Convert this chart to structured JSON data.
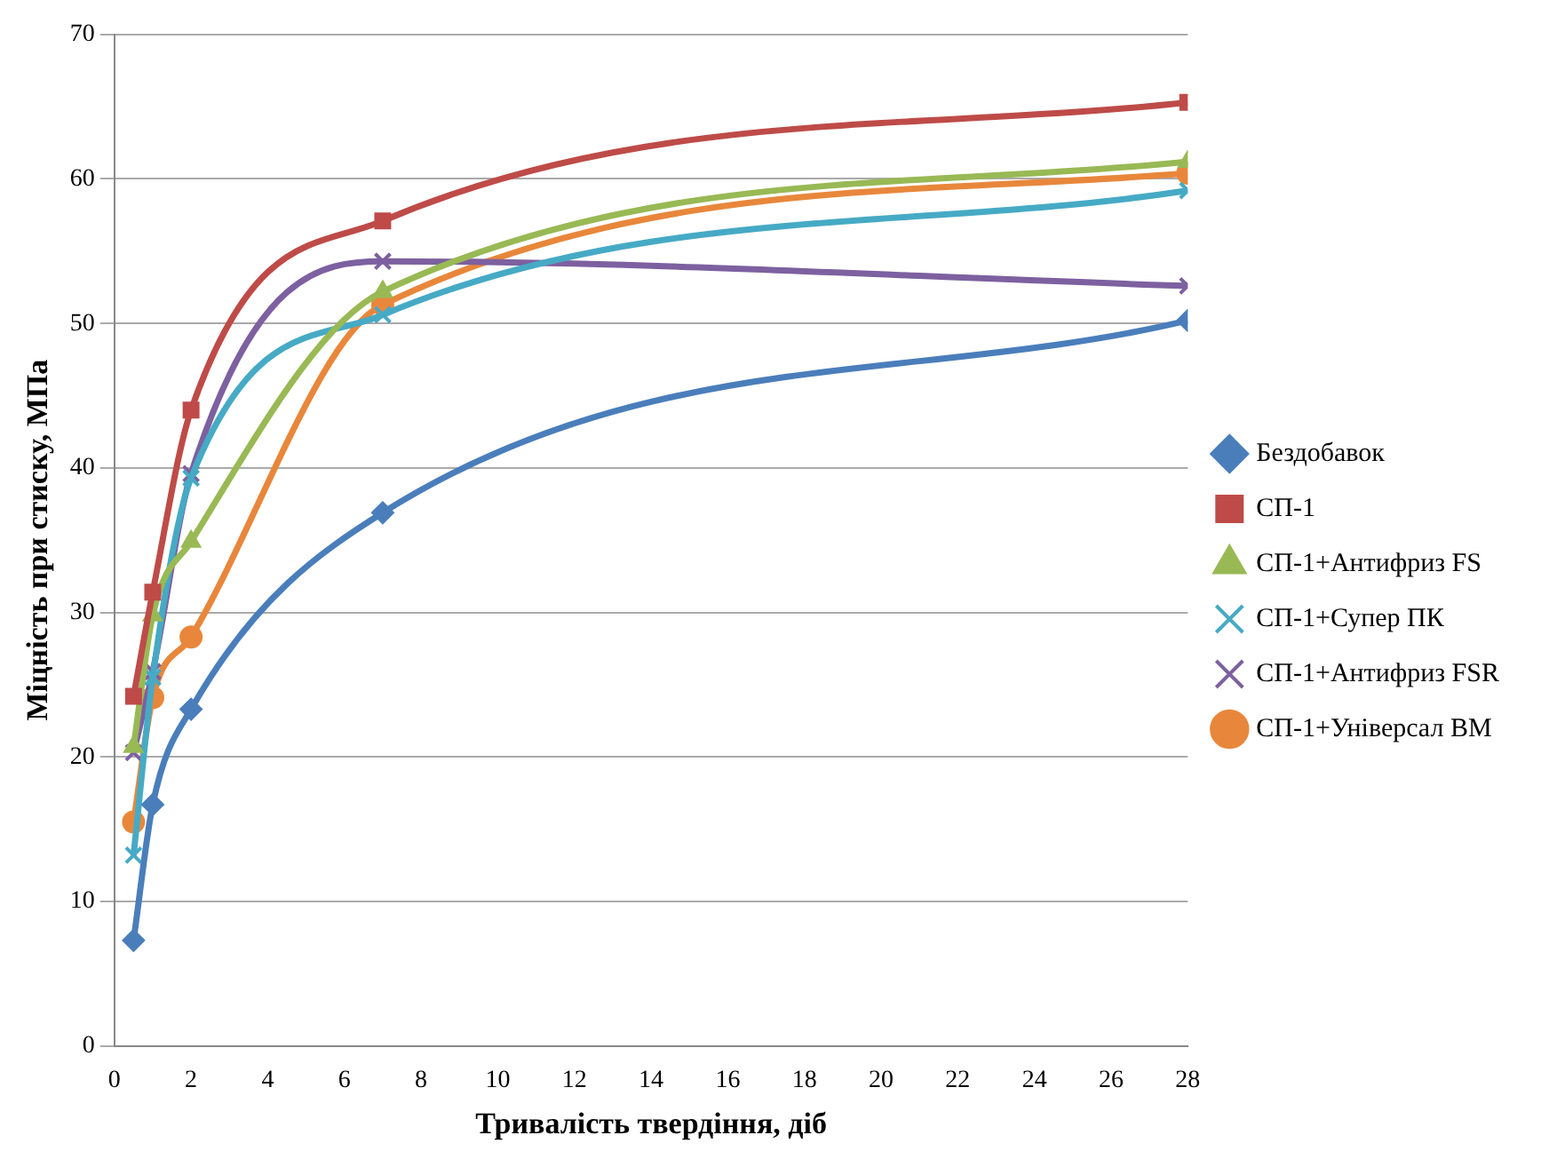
{
  "chart_data": {
    "type": "line",
    "xlabel": "Тривалість твердіння, діб",
    "ylabel": "Міцність при стиску, МПа",
    "x": [
      0.5,
      1,
      2,
      7,
      28
    ],
    "series": [
      {
        "name": "Бездобавок",
        "color": "#4a7ebb",
        "marker": "diamond",
        "values": [
          7.3,
          16.7,
          23.3,
          36.9,
          50.2
        ]
      },
      {
        "name": "СП-1",
        "color": "#be4b48",
        "marker": "square",
        "values": [
          24.2,
          31.4,
          44.0,
          57.1,
          65.3
        ]
      },
      {
        "name": "СП-1+Антифриз FS",
        "color": "#98b954",
        "marker": "triangle",
        "values": [
          20.7,
          29.8,
          34.9,
          52.2,
          61.2
        ]
      },
      {
        "name": "СП-1+Супер ПК",
        "color": "#46aac5",
        "marker": "cross",
        "values": [
          13.2,
          25.5,
          39.3,
          50.6,
          59.2
        ]
      },
      {
        "name": "СП-1+Антифриз FSR",
        "color": "#7d60a0",
        "marker": "cross",
        "values": [
          20.3,
          25.9,
          39.6,
          54.3,
          52.6
        ]
      },
      {
        "name": "СП-1+Універсал ВМ",
        "color": "#e8873b",
        "marker": "circle",
        "values": [
          15.5,
          24.1,
          28.3,
          51.3,
          60.4
        ]
      }
    ],
    "xlim": [
      0,
      28
    ],
    "xticks": [
      0,
      2,
      4,
      6,
      8,
      10,
      12,
      14,
      16,
      18,
      20,
      22,
      24,
      26,
      28
    ],
    "ylim": [
      0,
      70
    ],
    "yticks": [
      0,
      10,
      20,
      30,
      40,
      50,
      60,
      70
    ],
    "grid": "y",
    "legend": "right"
  }
}
